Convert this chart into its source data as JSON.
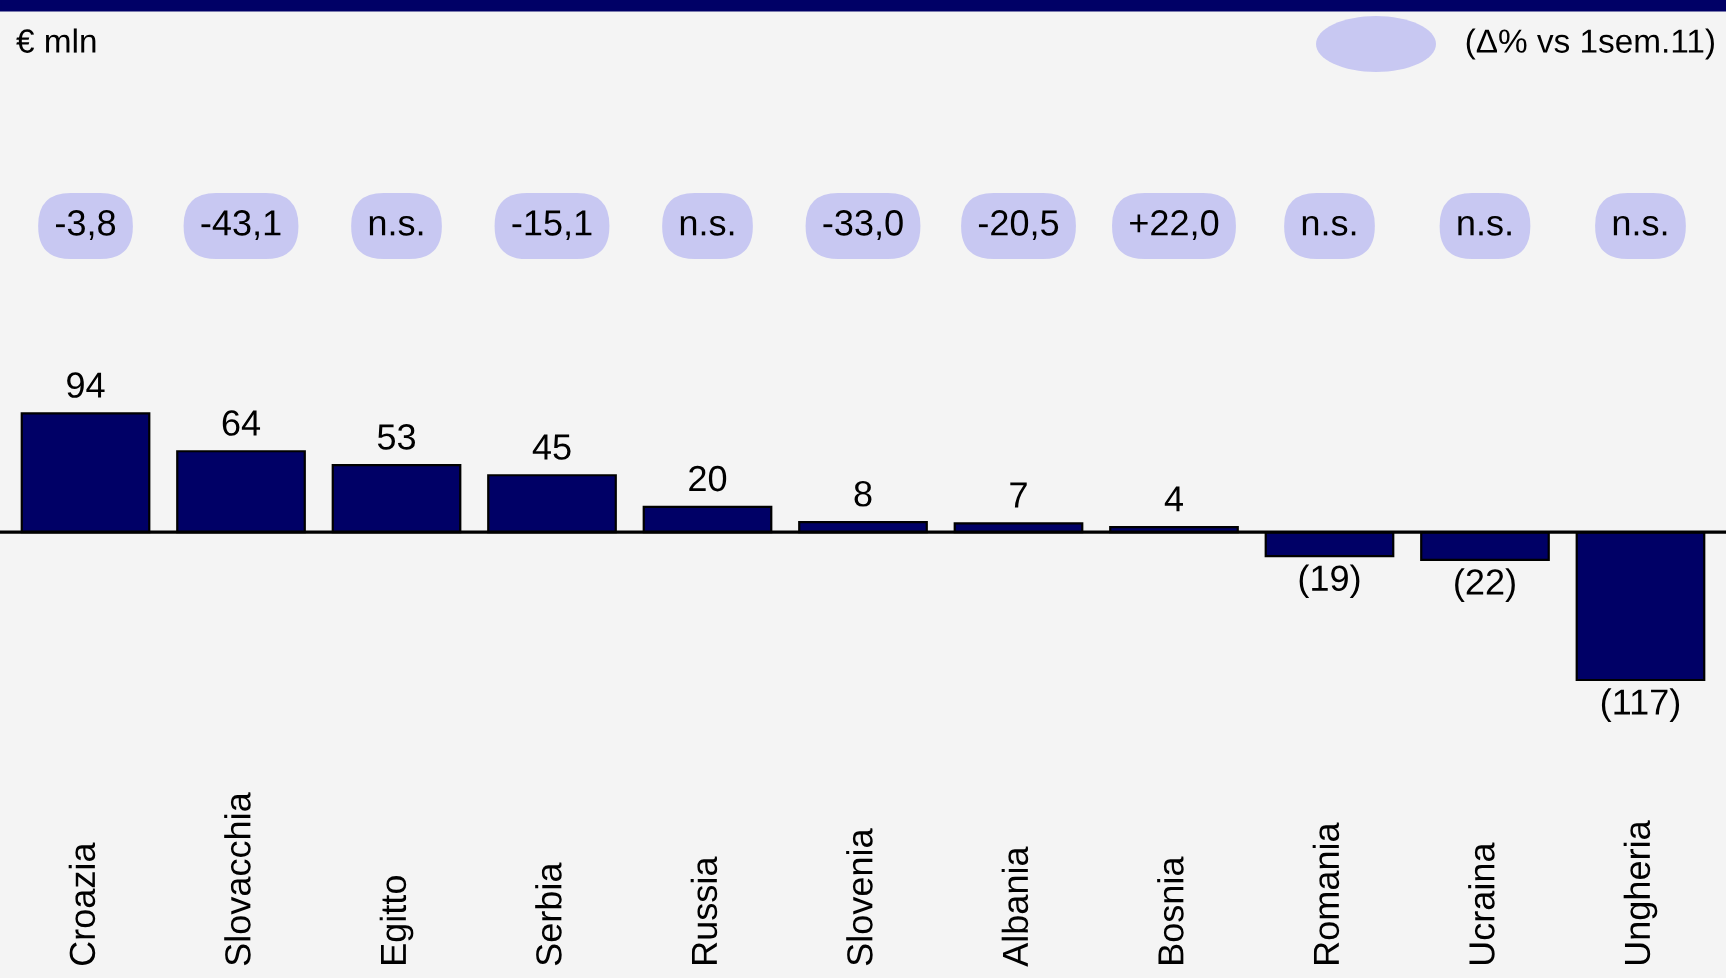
{
  "chart_data": {
    "type": "bar",
    "categories": [
      "Croazia",
      "Slovacchia",
      "Egitto",
      "Serbia",
      "Russia",
      "Slovenia",
      "Albania",
      "Bosnia",
      "Romania",
      "Ucraina",
      "Ungheria"
    ],
    "values": [
      94,
      64,
      53,
      45,
      20,
      8,
      7,
      4,
      -19,
      -22,
      -117
    ],
    "value_labels": [
      "94",
      "64",
      "53",
      "45",
      "20",
      "8",
      "7",
      "4",
      "(19)",
      "(22)",
      "(117)"
    ],
    "color": "#000066",
    "annotations": [
      "-3,8",
      "-43,1",
      "n.s.",
      "-15,1",
      "n.s.",
      "-33,0",
      "-20,5",
      "+22,0",
      "n.s.",
      "n.s.",
      "n.s.",
      "(Δ% vs 1sem.11)",
      "€ mln"
    ],
    "legend": false
  }
}
